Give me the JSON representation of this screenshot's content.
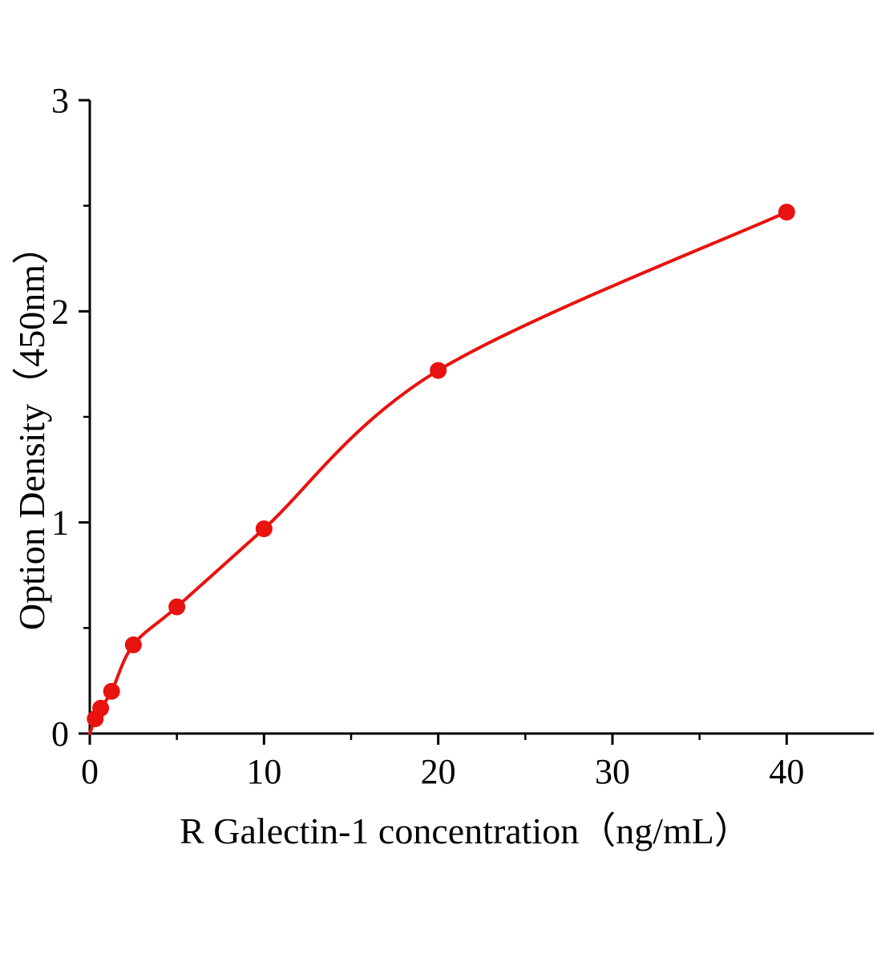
{
  "chart_data": {
    "type": "scatter",
    "title": "",
    "xlabel": "R Galectin-1 concentration（ng/mL）",
    "ylabel": "Option Density（450nm）",
    "x": [
      0.313,
      0.625,
      1.25,
      2.5,
      5,
      10,
      20,
      40
    ],
    "y": [
      0.07,
      0.12,
      0.2,
      0.42,
      0.6,
      0.97,
      1.72,
      2.47
    ],
    "curve_anchor": {
      "x": 0,
      "y": 0
    },
    "xlim": [
      0,
      45
    ],
    "ylim": [
      0,
      3
    ],
    "x_ticks": [
      0,
      10,
      20,
      30,
      40
    ],
    "y_ticks": [
      0,
      1,
      2,
      3
    ],
    "x_minor_ticks": [
      5,
      15,
      25,
      35
    ],
    "y_minor_ticks": [
      0.5,
      1.5,
      2.5
    ],
    "grid": false,
    "legend": "none",
    "marker_color": "#e8120e",
    "line_color": "#e8120e",
    "axis_color": "#000000",
    "marker_radius": 10.5
  }
}
